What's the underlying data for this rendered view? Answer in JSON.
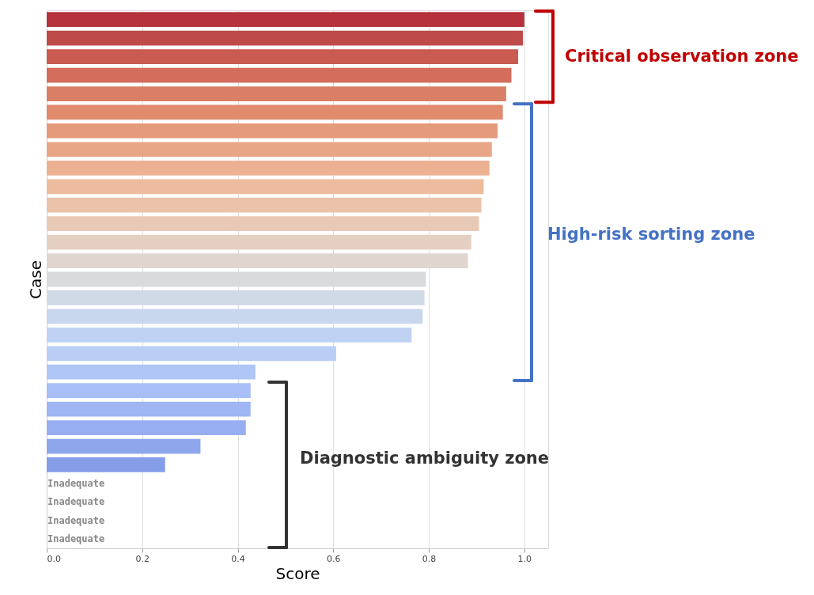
{
  "chart_data": {
    "type": "bar",
    "orientation": "horizontal",
    "xlabel": "Score",
    "ylabel": "Case",
    "categories": [
      null,
      null,
      null,
      null,
      null,
      null,
      null,
      null,
      null,
      null,
      null,
      null,
      null,
      null,
      null,
      null,
      null,
      null,
      null,
      null,
      null,
      null,
      null,
      null,
      null,
      null,
      null,
      null,
      null
    ],
    "values": [
      1.0,
      0.997,
      0.987,
      0.973,
      0.962,
      0.955,
      0.944,
      0.932,
      0.927,
      0.915,
      0.91,
      0.905,
      0.889,
      0.882,
      0.794,
      0.791,
      0.787,
      0.764,
      0.606,
      0.437,
      0.427,
      0.427,
      0.417,
      0.322,
      0.248,
      null,
      null,
      null,
      null
    ],
    "value_labels": [
      null,
      null,
      null,
      null,
      null,
      null,
      null,
      null,
      null,
      null,
      null,
      null,
      null,
      null,
      null,
      null,
      null,
      null,
      null,
      null,
      null,
      null,
      null,
      null,
      null,
      "Inadequate",
      "Inadequate",
      "Inadequate",
      "Inadequate"
    ],
    "colors": [
      "#b5323c",
      "#be4a4a",
      "#c95b50",
      "#d46d5b",
      "#d97f65",
      "#e08a6e",
      "#e59a7c",
      "#e9a686",
      "#ecb192",
      "#edbb9e",
      "#ebc2aa",
      "#e8c9b6",
      "#e5cfc3",
      "#e0d6cf",
      "#d8dadc",
      "#d0d9e6",
      "#c8d6ee",
      "#c0d2f3",
      "#b9cdf5",
      "#b0c6f6",
      "#a7bef6",
      "#9fb6f4",
      "#97aef1",
      "#8ea6ec",
      "#859de6",
      "#859de6",
      "#859de6",
      "#859de6",
      "#859de6"
    ],
    "xlim": [
      0,
      1.05
    ],
    "xticks": [
      {
        "value": 0,
        "label": "0.0"
      },
      {
        "value": 0.2,
        "label": "0.2"
      },
      {
        "value": 0.4,
        "label": "0.4"
      },
      {
        "value": 0.6,
        "label": "0.6"
      },
      {
        "value": 0.8,
        "label": "0.8"
      },
      {
        "value": 1,
        "label": "1.0"
      }
    ],
    "grid": "x",
    "annotations": [
      "Critical observation zone",
      "High-risk sorting zone",
      "Diagnostic ambiguity zone"
    ]
  }
}
